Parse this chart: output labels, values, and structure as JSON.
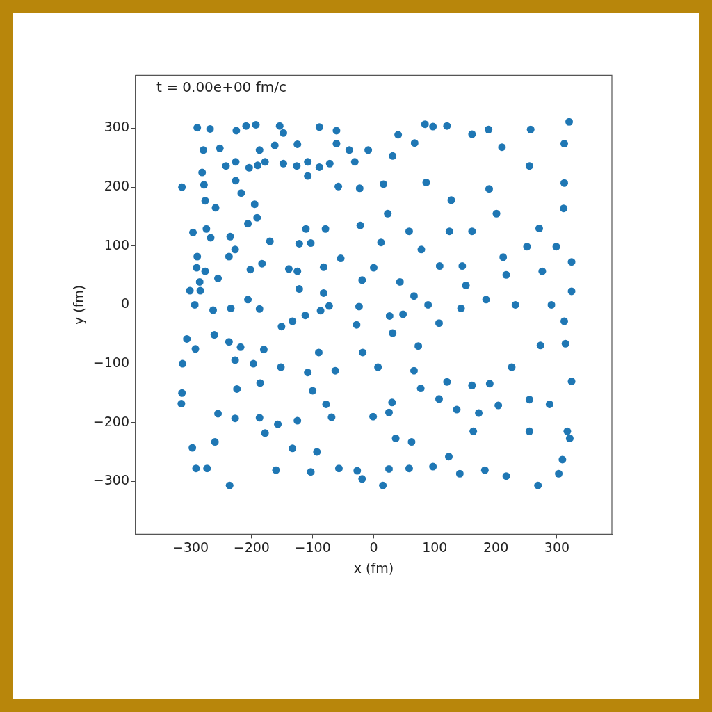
{
  "chart_data": {
    "type": "scatter",
    "xlabel": "x (fm)",
    "ylabel": "y (fm)",
    "annotations": [
      "t = 0.00e+00 fm/c"
    ],
    "color": "#1f77b4",
    "marker": "circle",
    "grid": false,
    "legend": false,
    "xlim": [
      -390,
      390
    ],
    "ylim": [
      -390,
      390
    ],
    "xticks": [
      {
        "value": -300,
        "label": "−300"
      },
      {
        "value": -200,
        "label": "−200"
      },
      {
        "value": -100,
        "label": "−100"
      },
      0,
      100,
      200,
      300
    ],
    "yticks": [
      {
        "value": -300,
        "label": "−300"
      },
      {
        "value": -200,
        "label": "−200"
      },
      {
        "value": -100,
        "label": "−100"
      },
      0,
      100,
      200,
      300
    ],
    "x": [
      -289,
      -268,
      -225,
      -209,
      -193,
      -154,
      -148,
      -89,
      -61,
      -279,
      -252,
      -187,
      -162,
      -125,
      -61,
      -40,
      -9,
      -314,
      -281,
      -278,
      -276,
      -259,
      -242,
      -226,
      -226,
      -204,
      -190,
      -217,
      -195,
      -178,
      -148,
      -126,
      -108,
      -108,
      -89,
      -72,
      -31,
      -58,
      -23,
      -296,
      -274,
      -267,
      -235,
      -206,
      -191,
      -170,
      -122,
      -111,
      -103,
      -79,
      -22,
      -289,
      -290,
      -276,
      -285,
      -255,
      -237,
      -227,
      -183,
      -202,
      -139,
      -125,
      -82,
      -54,
      -19,
      0,
      -301,
      -284,
      -293,
      -263,
      -234,
      -206,
      -187,
      -151,
      -133,
      -112,
      -87,
      -73,
      -28,
      -24,
      -306,
      -292,
      -261,
      -237,
      -218,
      -180,
      -197,
      -227,
      -152,
      -108,
      -90,
      -63,
      -18,
      7,
      -313,
      -314,
      -315,
      -297,
      -291,
      -273,
      -236,
      -260,
      -255,
      -227,
      -224,
      -186,
      -187,
      -178,
      -157,
      -160,
      -133,
      -125,
      -100,
      -78,
      -69,
      -103,
      -93,
      -57,
      -27,
      -19,
      -1,
      15,
      25,
      36,
      25,
      31,
      48,
      73,
      89,
      107,
      143,
      120,
      161,
      190,
      226,
      273,
      314,
      312,
      291,
      324,
      324,
      276,
      251,
      299,
      271,
      311,
      312,
      320,
      312,
      257,
      255,
      210,
      188,
      161,
      120,
      97,
      84,
      40,
      31,
      67,
      86,
      127,
      189,
      201,
      161,
      124,
      58,
      23,
      16,
      78,
      145,
      212,
      217,
      151,
      108,
      43,
      12,
      26,
      232,
      184,
      30,
      77,
      107,
      136,
      172,
      204,
      255,
      288,
      255,
      317,
      321,
      324,
      123,
      141,
      182,
      217,
      269,
      303,
      309,
      97,
      58,
      62,
      163,
      66,
      -82,
      -122,
      66
    ],
    "values": [
      301,
      299,
      296,
      304,
      306,
      304,
      292,
      302,
      296,
      263,
      266,
      263,
      271,
      273,
      274,
      263,
      263,
      200,
      225,
      204,
      177,
      165,
      236,
      243,
      211,
      233,
      237,
      190,
      171,
      243,
      240,
      236,
      219,
      243,
      234,
      240,
      243,
      201,
      198,
      123,
      129,
      114,
      116,
      138,
      148,
      108,
      104,
      129,
      105,
      129,
      135,
      82,
      63,
      57,
      39,
      45,
      82,
      94,
      70,
      60,
      61,
      57,
      64,
      79,
      42,
      63,
      24,
      24,
      0,
      -9,
      -6,
      9,
      -7,
      -37,
      -28,
      -18,
      -10,
      -2,
      -34,
      -3,
      -58,
      -75,
      -51,
      -63,
      -72,
      -76,
      -100,
      -94,
      -106,
      -115,
      -81,
      -112,
      -81,
      -106,
      -100,
      -150,
      -168,
      -243,
      -278,
      -278,
      -307,
      -233,
      -185,
      -193,
      -143,
      -133,
      -192,
      -218,
      -203,
      -281,
      -244,
      -197,
      -146,
      -169,
      -191,
      -284,
      -250,
      -278,
      -282,
      -296,
      -190,
      -307,
      -279,
      -227,
      -183,
      -48,
      -16,
      -70,
      0,
      -31,
      -6,
      -131,
      -137,
      -134,
      -106,
      -69,
      -66,
      -28,
      0,
      23,
      73,
      57,
      99,
      99,
      130,
      164,
      207,
      311,
      274,
      298,
      236,
      268,
      298,
      290,
      304,
      303,
      307,
      289,
      253,
      275,
      208,
      178,
      197,
      155,
      125,
      125,
      125,
      155,
      205,
      94,
      66,
      81,
      51,
      33,
      66,
      39,
      106,
      -19,
      0,
      9,
      -166,
      -142,
      -160,
      -178,
      -184,
      -171,
      -161,
      -169,
      -215,
      -215,
      -227,
      -130,
      -258,
      -287,
      -281,
      -291,
      -307,
      -287,
      -263,
      -275,
      -278,
      -233,
      -215,
      -112,
      20,
      27,
      15
    ]
  }
}
